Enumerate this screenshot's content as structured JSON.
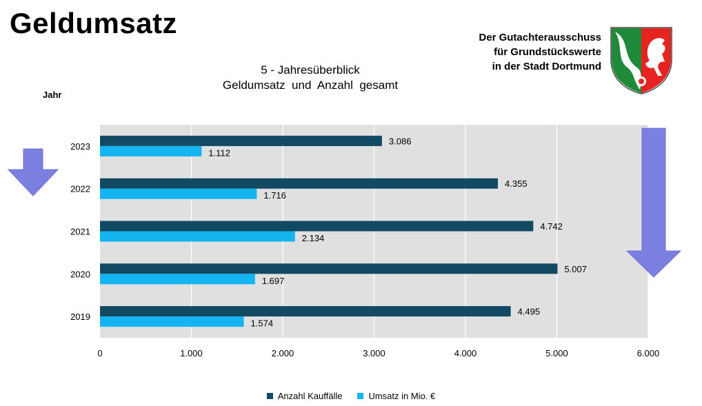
{
  "page": {
    "title": "Geldumsatz",
    "org_lines": [
      "Der Gutachterausschuss",
      "für Grundstückswerte",
      "in der Stadt Dortmund"
    ]
  },
  "colors": {
    "dark_bar": "#124a63",
    "light_bar": "#14b4f0",
    "plot_bg": "#e0e0e0",
    "arrow": "#7b7fe0"
  },
  "chart_data": {
    "type": "bar",
    "orientation": "horizontal",
    "title_lines": [
      "5 - Jahresüberblick",
      "Geldumsatz  und  Anzahl  gesamt"
    ],
    "ylabel": "Jahr",
    "xlabel": "",
    "categories": [
      "2023",
      "2022",
      "2021",
      "2020",
      "2019"
    ],
    "series": [
      {
        "name": "Anzahl Kauffälle",
        "values": [
          3086,
          4355,
          4742,
          5007,
          4495
        ],
        "labels": [
          "3.086",
          "4.355",
          "4.742",
          "5.007",
          "4.495"
        ]
      },
      {
        "name": "Umsatz in Mio. €",
        "values": [
          1112,
          1716,
          2134,
          1697,
          1574
        ],
        "labels": [
          "1.112",
          "1.716",
          "2.134",
          "1.697",
          "1.574"
        ]
      }
    ],
    "xlim": [
      0,
      6000
    ],
    "xticks": [
      0,
      1000,
      2000,
      3000,
      4000,
      5000,
      6000
    ],
    "xtick_labels": [
      "0",
      "1.000",
      "2.000",
      "3.000",
      "4.000",
      "5.000",
      "6.000"
    ],
    "grid": true,
    "legend_position": "bottom"
  },
  "decor": {
    "arrows": [
      "down-arrow-left",
      "down-arrow-right"
    ]
  }
}
